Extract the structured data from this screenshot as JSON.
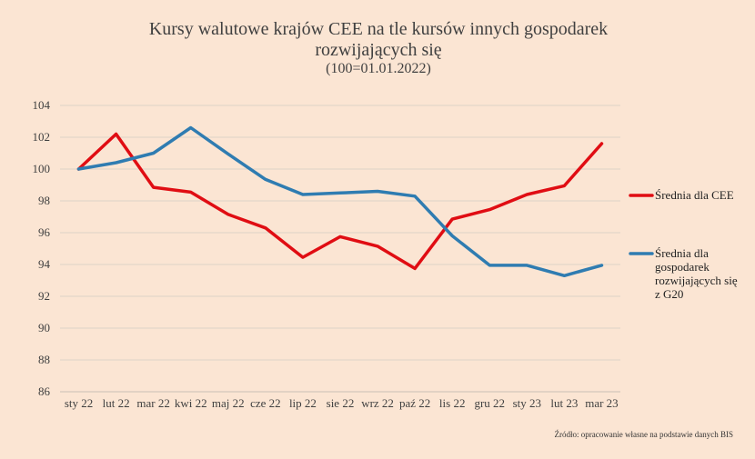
{
  "chart_data": {
    "type": "line",
    "title_lines": [
      "Kursy walutowe krajów CEE na tle kursów innych gospodarek",
      "rozwijających się",
      "(100=01.01.2022)"
    ],
    "categories": [
      "sty 22",
      "lut 22",
      "mar 22",
      "kwi 22",
      "maj 22",
      "cze 22",
      "lip 22",
      "sie 22",
      "wrz 22",
      "paź 22",
      "lis 22",
      "gru 22",
      "sty 23",
      "lut 23",
      "mar 23"
    ],
    "ylim": [
      86,
      104
    ],
    "yticks": [
      104,
      102,
      100,
      98,
      96,
      94,
      92,
      90,
      88,
      86
    ],
    "grid": true,
    "legend_position": "right",
    "series": [
      {
        "name": "Średnia dla CEE",
        "legend_lines": [
          "Średnia dla CEE"
        ],
        "color": "#e00d13",
        "values": [
          100.0,
          102.2,
          98.85,
          98.55,
          97.15,
          96.3,
          94.45,
          95.75,
          95.15,
          93.75,
          96.85,
          97.45,
          98.4,
          98.95,
          101.6
        ]
      },
      {
        "name": "Średnia dla gospodarek rozwijających się z G20",
        "legend_lines": [
          "Średnia dla",
          "gospodarek",
          "rozwijających się",
          "z G20"
        ],
        "color": "#2f7cb1",
        "values": [
          100.0,
          100.4,
          101.0,
          102.6,
          100.95,
          99.35,
          98.4,
          98.5,
          98.6,
          98.3,
          95.8,
          93.95,
          93.95,
          93.3,
          93.95
        ]
      }
    ],
    "source": "Źródło: opracowanie własne na podstawie danych BIS"
  }
}
